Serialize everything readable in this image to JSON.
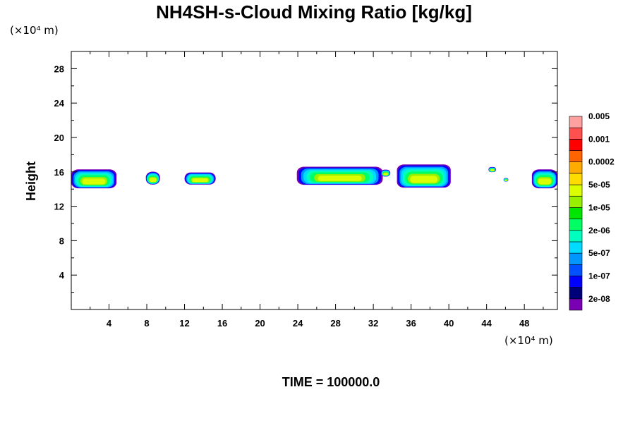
{
  "chart_data": {
    "type": "heatmap",
    "title": "NH4SH-s-Cloud Mixing Ratio [kg/kg]",
    "xlabel": "",
    "ylabel": "Height",
    "x_unit": "(×10⁴ m)",
    "y_unit": "(×10⁴ m)",
    "xlim": [
      0,
      51.5
    ],
    "ylim": [
      0,
      30
    ],
    "x_ticks": [
      4,
      8,
      12,
      16,
      20,
      24,
      28,
      32,
      36,
      40,
      44,
      48
    ],
    "y_ticks": [
      4,
      8,
      12,
      16,
      20,
      24,
      28
    ],
    "footer": "TIME = 100000.0",
    "colorbar": {
      "colors": [
        "#7a00b4",
        "#000078",
        "#0000ff",
        "#0050ff",
        "#0096ff",
        "#00dcff",
        "#00ffbe",
        "#00ff64",
        "#00e600",
        "#96f000",
        "#dcff00",
        "#ffdc00",
        "#ffaa00",
        "#ff6400",
        "#ff0000",
        "#ff5050",
        "#ffa0a0"
      ],
      "labels": [
        "2e-08",
        "1e-07",
        "5e-07",
        "2e-06",
        "1e-05",
        "5e-05",
        "0.0002",
        "0.001",
        "0.005"
      ]
    },
    "cloud_clusters": [
      {
        "x": [
          0,
          4.8
        ],
        "y": [
          14.2,
          16.4
        ]
      },
      {
        "x": [
          7.9,
          9.4
        ],
        "y": [
          14.6,
          16.1
        ]
      },
      {
        "x": [
          12.0,
          15.3
        ],
        "y": [
          14.6,
          16.0
        ]
      },
      {
        "x": [
          23.9,
          33.0
        ],
        "y": [
          14.6,
          16.7
        ]
      },
      {
        "x": [
          32.8,
          33.8
        ],
        "y": [
          15.5,
          16.3
        ]
      },
      {
        "x": [
          34.5,
          40.2
        ],
        "y": [
          14.3,
          17.0
        ]
      },
      {
        "x": [
          44.2,
          45.0
        ],
        "y": [
          16.0,
          16.6
        ]
      },
      {
        "x": [
          45.8,
          46.3
        ],
        "y": [
          14.9,
          15.3
        ]
      },
      {
        "x": [
          48.8,
          51.5
        ],
        "y": [
          14.2,
          16.4
        ]
      }
    ]
  }
}
